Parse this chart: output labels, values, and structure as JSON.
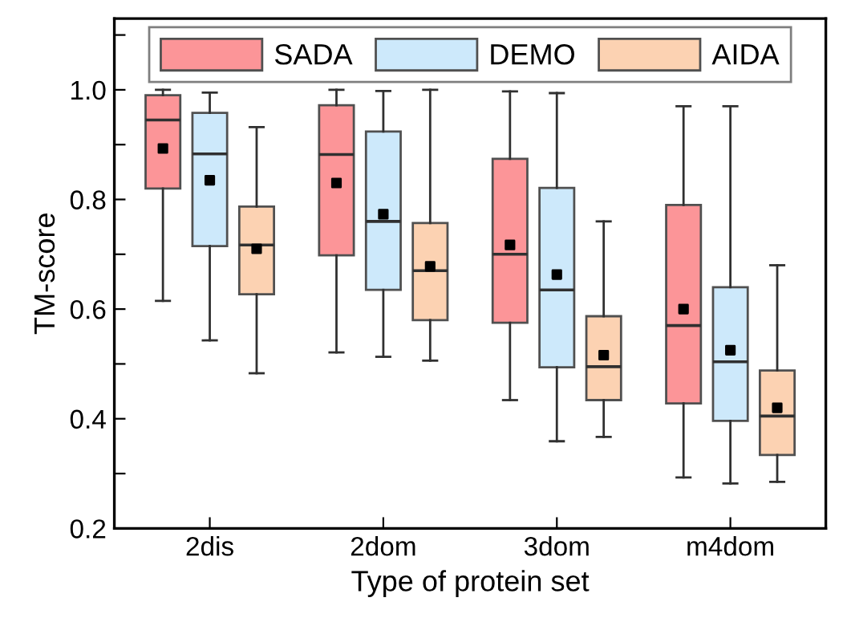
{
  "chart_data": {
    "type": "box",
    "xlabel": "Type of protein set",
    "ylabel": "TM-score",
    "categories": [
      "2dis",
      "2dom",
      "3dom",
      "m4dom"
    ],
    "ylim": [
      0.2,
      1.13
    ],
    "yticks": [
      0.2,
      {
        "value": 0.3,
        "label": null
      },
      0.4,
      {
        "value": 0.5,
        "label": null
      },
      0.6,
      {
        "value": 0.7,
        "label": null
      },
      0.8,
      {
        "value": 0.9,
        "label": null
      },
      "1.0",
      {
        "value": 1.1,
        "label": null
      }
    ],
    "legend": "top",
    "grid": false,
    "marker": "square",
    "series": [
      {
        "name": "SADA",
        "color": "#fc9598",
        "boxes": [
          {
            "low": 0.615,
            "q1": 0.82,
            "median": 0.945,
            "q3": 0.99,
            "high": 1.0,
            "mean": 0.893
          },
          {
            "low": 0.521,
            "q1": 0.698,
            "median": 0.882,
            "q3": 0.972,
            "high": 1.0,
            "mean": 0.83
          },
          {
            "low": 0.434,
            "q1": 0.575,
            "median": 0.7,
            "q3": 0.874,
            "high": 0.997,
            "mean": 0.717
          },
          {
            "low": 0.293,
            "q1": 0.428,
            "median": 0.57,
            "q3": 0.79,
            "high": 0.97,
            "mean": 0.6
          }
        ]
      },
      {
        "name": "DEMO",
        "color": "#cde9fb",
        "boxes": [
          {
            "low": 0.543,
            "q1": 0.715,
            "median": 0.883,
            "q3": 0.958,
            "high": 0.995,
            "mean": 0.835
          },
          {
            "low": 0.513,
            "q1": 0.635,
            "median": 0.76,
            "q3": 0.924,
            "high": 0.998,
            "mean": 0.773
          },
          {
            "low": 0.359,
            "q1": 0.494,
            "median": 0.635,
            "q3": 0.821,
            "high": 0.994,
            "mean": 0.663
          },
          {
            "low": 0.282,
            "q1": 0.396,
            "median": 0.504,
            "q3": 0.64,
            "high": 0.97,
            "mean": 0.525
          }
        ]
      },
      {
        "name": "AIDA",
        "color": "#fcd2b2",
        "boxes": [
          {
            "low": 0.483,
            "q1": 0.627,
            "median": 0.717,
            "q3": 0.787,
            "high": 0.932,
            "mean": 0.71
          },
          {
            "low": 0.506,
            "q1": 0.58,
            "median": 0.67,
            "q3": 0.757,
            "high": 1.0,
            "mean": 0.678
          },
          {
            "low": 0.367,
            "q1": 0.434,
            "median": 0.495,
            "q3": 0.587,
            "high": 0.76,
            "mean": 0.516
          },
          {
            "low": 0.285,
            "q1": 0.334,
            "median": 0.405,
            "q3": 0.488,
            "high": 0.68,
            "mean": 0.42
          }
        ]
      }
    ]
  }
}
